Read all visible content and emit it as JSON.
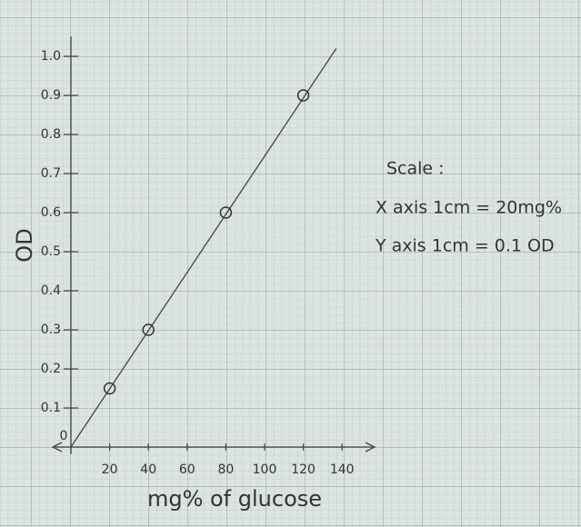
{
  "chart_data": {
    "type": "scatter",
    "x_label": "mg% of glucose",
    "y_label": "OD",
    "x": [
      20,
      40,
      80,
      120
    ],
    "values": [
      0.15,
      0.3,
      0.6,
      0.9
    ],
    "color": "#333333",
    "trendline": {
      "x": [
        0,
        137
      ],
      "values": [
        0,
        1.02
      ]
    },
    "xlim": [
      0,
      150
    ],
    "ylim": [
      0,
      1.1
    ],
    "xticks": [
      0,
      20,
      40,
      60,
      80,
      100,
      120,
      140
    ],
    "yticks": [
      0.1,
      0.2,
      0.3,
      0.4,
      0.5,
      0.6,
      0.7,
      0.8,
      0.9,
      {
        "value": 1,
        "label": "1.0"
      }
    ],
    "annotations": [
      "Scale :",
      "X axis 1cm = 20mg%",
      "Y axis 1cm = 0.1 OD"
    ]
  }
}
